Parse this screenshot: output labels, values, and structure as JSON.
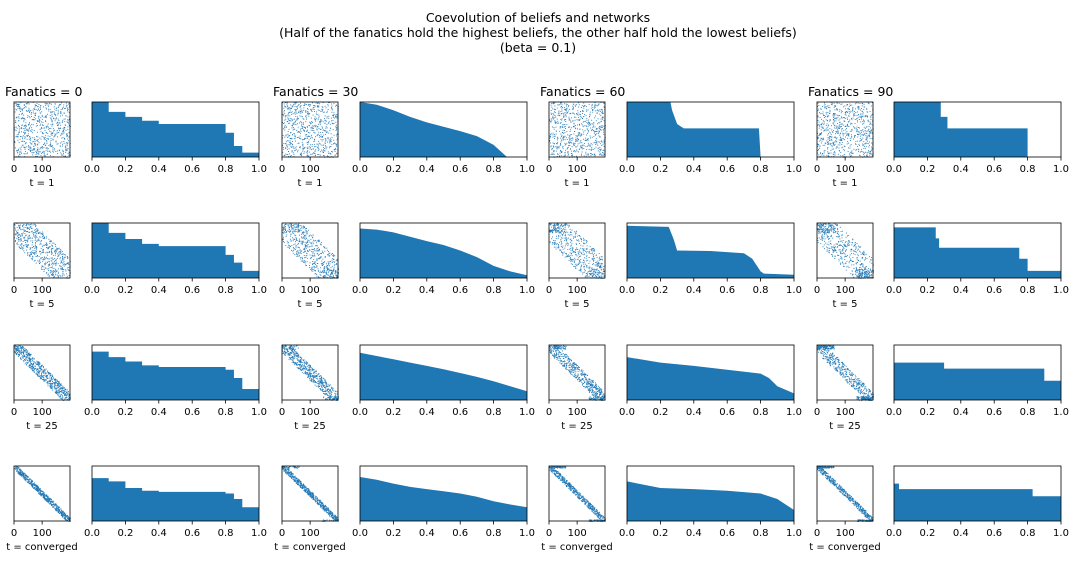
{
  "figure": {
    "title_lines": [
      "Coevolution of beliefs and networks",
      "(Half of the fanatics hold the highest beliefs, the other half hold the lowest beliefs)",
      "(beta = 0.1)"
    ]
  },
  "colors": {
    "mark": "#1f77b4",
    "axis": "#000000",
    "background": "#ffffff"
  },
  "chart_data": {
    "type": "grid",
    "columns": [
      "Fanatics = 0",
      "Fanatics = 30",
      "Fanatics = 60",
      "Fanatics = 90"
    ],
    "rows": [
      "t = 1",
      "t = 5",
      "t = 25",
      "t = converged"
    ],
    "scatter": {
      "type": "scatter",
      "description_axis": "agent index vs belief rank",
      "xlim": [
        0,
        199
      ],
      "ylim": [
        0,
        199
      ],
      "x_ticks": [
        0,
        100
      ],
      "y_ticks": [],
      "x_tick_labels_by_column": [
        [
          "0",
          "100"
        ],
        [
          "0",
          "100"
        ],
        [
          "0",
          "100"
        ],
        [
          "0",
          "100"
        ]
      ]
    },
    "area": {
      "type": "area",
      "xlim": [
        0,
        1
      ],
      "ylim": [
        0,
        1
      ],
      "x_ticks": [
        "0.0",
        "0.2",
        "0.4",
        "0.6",
        "0.8",
        "1.0"
      ],
      "y_ticks": [],
      "panels": [
        [
          {
            "x": [
              0,
              0.1,
              0.2,
              0.3,
              0.4,
              0.55,
              0.7,
              0.8,
              0.85,
              0.9,
              1.0
            ],
            "y": [
              1.0,
              0.82,
              0.73,
              0.66,
              0.6,
              0.6,
              0.6,
              0.44,
              0.2,
              0.08,
              0.08
            ],
            "step": true
          },
          {
            "x": [
              0,
              0.1,
              0.2,
              0.3,
              0.4,
              0.5,
              0.6,
              0.7,
              0.8,
              0.88,
              1.0
            ],
            "y": [
              1.0,
              0.95,
              0.85,
              0.73,
              0.63,
              0.55,
              0.47,
              0.38,
              0.22,
              0.0,
              0.0
            ],
            "step": false
          },
          {
            "x": [
              0,
              0.26,
              0.27,
              0.3,
              0.34,
              0.5,
              0.7,
              0.79,
              0.8
            ],
            "y": [
              1.0,
              1.0,
              0.85,
              0.6,
              0.52,
              0.52,
              0.52,
              0.52,
              0.0
            ],
            "step": false
          },
          {
            "x": [
              0,
              0.28,
              0.32,
              0.8,
              1.0
            ],
            "y": [
              1.0,
              0.73,
              0.52,
              0.0,
              0.0
            ],
            "step": true
          }
        ],
        [
          {
            "x": [
              0,
              0.1,
              0.2,
              0.3,
              0.4,
              0.55,
              0.7,
              0.8,
              0.85,
              0.9,
              1.0
            ],
            "y": [
              1.0,
              0.82,
              0.71,
              0.62,
              0.58,
              0.58,
              0.58,
              0.42,
              0.28,
              0.13,
              0.13
            ],
            "step": true
          },
          {
            "x": [
              0,
              0.1,
              0.2,
              0.3,
              0.4,
              0.5,
              0.6,
              0.7,
              0.8,
              0.9,
              1.0
            ],
            "y": [
              0.9,
              0.88,
              0.83,
              0.75,
              0.67,
              0.6,
              0.5,
              0.38,
              0.22,
              0.12,
              0.05
            ],
            "step": false
          },
          {
            "x": [
              0,
              0.25,
              0.28,
              0.3,
              0.5,
              0.7,
              0.75,
              0.8,
              0.82,
              1.0
            ],
            "y": [
              0.95,
              0.93,
              0.7,
              0.5,
              0.49,
              0.45,
              0.35,
              0.12,
              0.08,
              0.06
            ],
            "step": false
          },
          {
            "x": [
              0,
              0.25,
              0.27,
              0.3,
              0.75,
              0.8,
              1.0
            ],
            "y": [
              0.92,
              0.72,
              0.55,
              0.55,
              0.35,
              0.13,
              0.13
            ],
            "step": true
          }
        ],
        [
          {
            "x": [
              0,
              0.1,
              0.2,
              0.3,
              0.4,
              0.55,
              0.7,
              0.8,
              0.85,
              0.9,
              1.0
            ],
            "y": [
              0.88,
              0.78,
              0.7,
              0.63,
              0.6,
              0.6,
              0.6,
              0.55,
              0.4,
              0.2,
              0.2
            ],
            "step": true
          },
          {
            "x": [
              0,
              0.1,
              0.2,
              0.3,
              0.4,
              0.5,
              0.6,
              0.7,
              0.8,
              0.9,
              1.0
            ],
            "y": [
              0.86,
              0.8,
              0.74,
              0.68,
              0.62,
              0.56,
              0.49,
              0.42,
              0.34,
              0.25,
              0.16
            ],
            "step": false
          },
          {
            "x": [
              0,
              0.2,
              0.4,
              0.6,
              0.8,
              0.85,
              0.9,
              1.0
            ],
            "y": [
              0.78,
              0.68,
              0.62,
              0.55,
              0.48,
              0.4,
              0.25,
              0.12
            ],
            "step": false
          },
          {
            "x": [
              0,
              0.3,
              0.9,
              1.0
            ],
            "y": [
              0.68,
              0.57,
              0.35,
              0.35
            ],
            "step": true
          }
        ],
        [
          {
            "x": [
              0,
              0.1,
              0.2,
              0.3,
              0.4,
              0.55,
              0.7,
              0.8,
              0.85,
              0.9,
              1.0
            ],
            "y": [
              0.78,
              0.72,
              0.6,
              0.55,
              0.53,
              0.53,
              0.53,
              0.5,
              0.4,
              0.25,
              0.25
            ],
            "step": true
          },
          {
            "x": [
              0,
              0.1,
              0.2,
              0.3,
              0.4,
              0.5,
              0.6,
              0.7,
              0.8,
              0.9,
              1.0
            ],
            "y": [
              0.8,
              0.75,
              0.68,
              0.62,
              0.58,
              0.54,
              0.5,
              0.44,
              0.36,
              0.3,
              0.25
            ],
            "step": false
          },
          {
            "x": [
              0,
              0.2,
              0.4,
              0.6,
              0.8,
              0.9,
              1.0
            ],
            "y": [
              0.72,
              0.6,
              0.58,
              0.55,
              0.5,
              0.4,
              0.2
            ],
            "step": false
          },
          {
            "x": [
              0,
              0.03,
              0.83,
              1.0
            ],
            "y": [
              0.68,
              0.58,
              0.45,
              0.4
            ],
            "step": true
          }
        ]
      ]
    }
  }
}
